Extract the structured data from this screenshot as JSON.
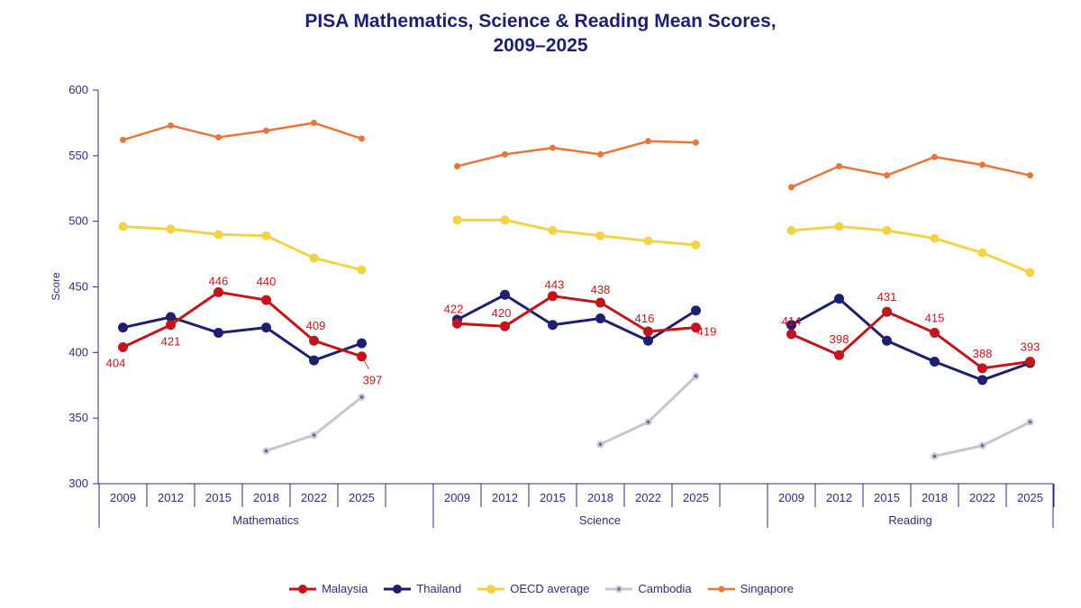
{
  "chart_data": {
    "type": "line",
    "title": "PISA Mathematics, Science & Reading Mean Scores, 2009–2025",
    "title_lines": [
      "PISA Mathematics, Science & Reading Mean Scores,",
      "2009–2025"
    ],
    "ylabel": "Score",
    "ylim": [
      300,
      600
    ],
    "yticks": [
      300,
      350,
      400,
      450,
      500,
      550,
      600
    ],
    "grid": false,
    "legend_position": "bottom",
    "groups": [
      {
        "name": "Mathematics",
        "years": [
          "2009",
          "2012",
          "2015",
          "2018",
          "2022",
          "2025"
        ],
        "series": [
          {
            "name": "Singapore",
            "values": [
              562,
              573,
              564,
              569,
              575,
              563
            ]
          },
          {
            "name": "OECD average",
            "values": [
              496,
              494,
              490,
              489,
              472,
              463
            ]
          },
          {
            "name": "Thailand",
            "values": [
              419,
              427,
              415,
              419,
              394,
              407
            ]
          },
          {
            "name": "Malaysia",
            "values": [
              404,
              421,
              446,
              440,
              409,
              397
            ]
          },
          {
            "name": "Cambodia",
            "values": [
              null,
              null,
              null,
              325,
              337,
              366
            ]
          }
        ]
      },
      {
        "name": "Science",
        "years": [
          "2009",
          "2012",
          "2015",
          "2018",
          "2022",
          "2025"
        ],
        "series": [
          {
            "name": "Singapore",
            "values": [
              542,
              551,
              556,
              551,
              561,
              560
            ]
          },
          {
            "name": "OECD average",
            "values": [
              501,
              501,
              493,
              489,
              485,
              482
            ]
          },
          {
            "name": "Thailand",
            "values": [
              425,
              444,
              421,
              426,
              409,
              432
            ]
          },
          {
            "name": "Malaysia",
            "values": [
              422,
              420,
              443,
              438,
              416,
              419
            ]
          },
          {
            "name": "Cambodia",
            "values": [
              null,
              null,
              null,
              330,
              347,
              382
            ]
          }
        ]
      },
      {
        "name": "Reading",
        "years": [
          "2009",
          "2012",
          "2015",
          "2018",
          "2022",
          "2025"
        ],
        "series": [
          {
            "name": "Singapore",
            "values": [
              526,
              542,
              535,
              549,
              543,
              535
            ]
          },
          {
            "name": "OECD average",
            "values": [
              493,
              496,
              493,
              487,
              476,
              461
            ]
          },
          {
            "name": "Thailand",
            "values": [
              421,
              441,
              409,
              393,
              379,
              392
            ]
          },
          {
            "name": "Malaysia",
            "values": [
              414,
              398,
              431,
              415,
              388,
              393
            ]
          },
          {
            "name": "Cambodia",
            "values": [
              null,
              null,
              null,
              321,
              329,
              347
            ]
          }
        ]
      }
    ],
    "data_labels_series": "Malaysia",
    "colors": {
      "Malaysia": "#c0161c",
      "Thailand": "#1e1f6e",
      "OECD average": "#f2d347",
      "Cambodia": "#c6c6cc",
      "Singapore": "#e8763a"
    },
    "legend": [
      "Malaysia",
      "Thailand",
      "OECD average",
      "Cambodia",
      "Singapore"
    ]
  }
}
